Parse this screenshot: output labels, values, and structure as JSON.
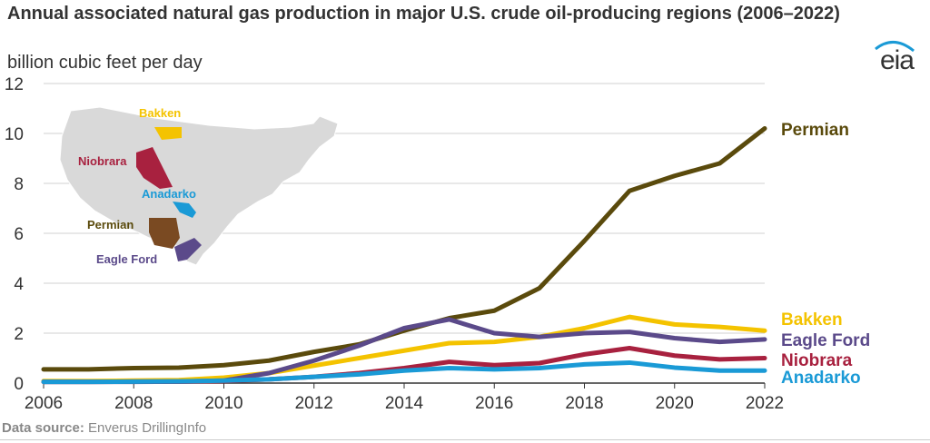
{
  "chart_data": {
    "type": "line",
    "title": "Annual associated natural gas production in major U.S. crude oil-producing regions (2006–2022)",
    "subtitle": "billion cubic feet per day",
    "xlim": [
      2006,
      2022
    ],
    "ylim": [
      0,
      12
    ],
    "x_ticks": [
      "2006",
      "2008",
      "2010",
      "2012",
      "2014",
      "2016",
      "2018",
      "2020",
      "2022"
    ],
    "y_ticks": [
      "0",
      "2",
      "4",
      "6",
      "8",
      "10",
      "12"
    ],
    "grid": "horizontal",
    "x": [
      2006,
      2007,
      2008,
      2009,
      2010,
      2011,
      2012,
      2013,
      2014,
      2015,
      2016,
      2017,
      2018,
      2019,
      2020,
      2021,
      2022
    ],
    "series": [
      {
        "name": "Permian",
        "color": "#5a4a0c",
        "values": [
          0.55,
          0.55,
          0.6,
          0.62,
          0.72,
          0.9,
          1.25,
          1.55,
          2.1,
          2.6,
          2.9,
          3.8,
          5.7,
          7.7,
          8.3,
          8.8,
          10.2
        ]
      },
      {
        "name": "Bakken",
        "color": "#f4c300",
        "values": [
          0.08,
          0.08,
          0.1,
          0.12,
          0.22,
          0.4,
          0.7,
          1.0,
          1.3,
          1.6,
          1.65,
          1.85,
          2.2,
          2.65,
          2.35,
          2.25,
          2.1
        ]
      },
      {
        "name": "Eagle Ford",
        "color": "#5b4a8a",
        "values": [
          0.05,
          0.05,
          0.05,
          0.06,
          0.1,
          0.4,
          0.9,
          1.5,
          2.2,
          2.55,
          2.0,
          1.85,
          2.0,
          2.05,
          1.8,
          1.65,
          1.75
        ]
      },
      {
        "name": "Niobrara",
        "color": "#a8213f",
        "values": [
          0.05,
          0.05,
          0.06,
          0.06,
          0.08,
          0.15,
          0.25,
          0.4,
          0.6,
          0.85,
          0.72,
          0.8,
          1.15,
          1.4,
          1.1,
          0.95,
          1.0
        ]
      },
      {
        "name": "Anadarko",
        "color": "#1a9ad6",
        "values": [
          0.05,
          0.05,
          0.06,
          0.07,
          0.1,
          0.15,
          0.25,
          0.35,
          0.5,
          0.6,
          0.55,
          0.6,
          0.75,
          0.82,
          0.62,
          0.5,
          0.5
        ]
      }
    ],
    "map_labels": [
      {
        "name": "Bakken",
        "color": "#f4c300"
      },
      {
        "name": "Niobrara",
        "color": "#a8213f"
      },
      {
        "name": "Anadarko",
        "color": "#1a9ad6"
      },
      {
        "name": "Permian",
        "color": "#5a4a0c"
      },
      {
        "name": "Eagle Ford",
        "color": "#5b4a8a"
      }
    ]
  },
  "logo": {
    "text": "eia"
  },
  "source": {
    "label": "Data source:",
    "text": " Enverus DrillingInfo"
  }
}
